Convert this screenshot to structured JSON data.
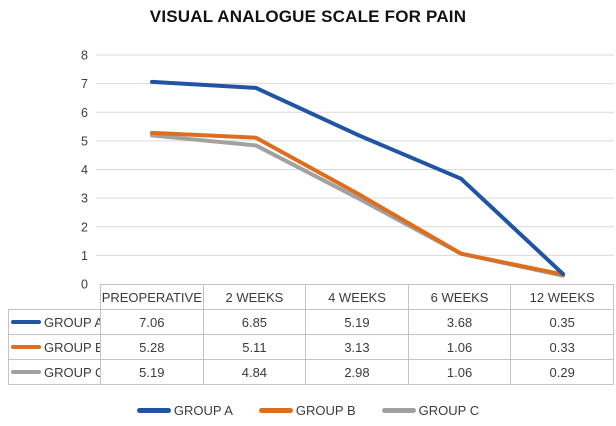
{
  "chart_data": {
    "type": "line",
    "title": "VISUAL ANALOGUE SCALE FOR PAIN",
    "categories": [
      "PREOPERATIVE",
      "2 WEEKS",
      "4 WEEKS",
      "6 WEEKS",
      "12 WEEKS"
    ],
    "series": [
      {
        "name": "GROUP A",
        "color": "#2154a4",
        "values": [
          7.06,
          6.85,
          5.19,
          3.68,
          0.35
        ]
      },
      {
        "name": "GROUP B",
        "color": "#dc6e1e",
        "values": [
          5.28,
          5.11,
          3.13,
          1.06,
          0.33
        ]
      },
      {
        "name": "GROUP C",
        "color": "#a1a1a1",
        "values": [
          5.19,
          4.84,
          2.98,
          1.06,
          0.29
        ]
      }
    ],
    "ylim": [
      0,
      8
    ],
    "ytick_step": 1,
    "grid": true,
    "legend_position": "bottom",
    "xlabel": "",
    "ylabel": ""
  },
  "colors": {
    "gridline": "#dbd9d4",
    "table_border": "#c3c3c3",
    "text": "#3b3b3b",
    "title_text": "#121212"
  }
}
